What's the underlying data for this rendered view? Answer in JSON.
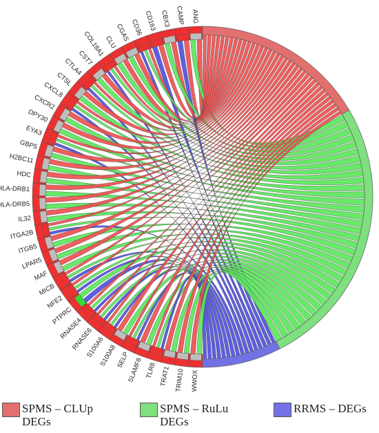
{
  "groups": [
    {
      "name": "SPMS – CLUp DEGs",
      "color": "#e36f6f",
      "ribbon_color": "#f05050",
      "arc_fraction": 0.33
    },
    {
      "name": "SPMS – RuLu DEGs",
      "color": "#7ee07e",
      "ribbon_color": "#5ce65c",
      "arc_fraction": 0.52
    },
    {
      "name": "RRMS – DEGs",
      "color": "#7272e6",
      "ribbon_color": "#5050e0",
      "arc_fraction": 0.15
    }
  ],
  "genes": [
    {
      "name": "ANG",
      "membership": [
        1,
        1,
        0
      ]
    },
    {
      "name": "CAMP",
      "membership": [
        1,
        0,
        1
      ]
    },
    {
      "name": "CBX3",
      "membership": [
        1,
        1,
        0
      ]
    },
    {
      "name": "CD163",
      "membership": [
        1,
        0,
        1
      ]
    },
    {
      "name": "CD36",
      "membership": [
        1,
        1,
        1
      ]
    },
    {
      "name": "CGAS",
      "membership": [
        1,
        1,
        0
      ]
    },
    {
      "name": "CLU",
      "membership": [
        1,
        1,
        0
      ]
    },
    {
      "name": "COL18A1",
      "membership": [
        1,
        1,
        1
      ]
    },
    {
      "name": "CST7",
      "membership": [
        1,
        1,
        0
      ]
    },
    {
      "name": "CTLA4",
      "membership": [
        1,
        1,
        1
      ]
    },
    {
      "name": "CTSL",
      "membership": [
        1,
        1,
        0
      ]
    },
    {
      "name": "CXCL8",
      "membership": [
        1,
        1,
        1
      ]
    },
    {
      "name": "CXCR2",
      "membership": [
        1,
        1,
        0
      ]
    },
    {
      "name": "DPY30",
      "membership": [
        1,
        1,
        0
      ]
    },
    {
      "name": "EYA3",
      "membership": [
        1,
        1,
        1
      ]
    },
    {
      "name": "GBP5",
      "membership": [
        1,
        1,
        0
      ]
    },
    {
      "name": "H2BC11",
      "membership": [
        1,
        1,
        0
      ]
    },
    {
      "name": "HDC",
      "membership": [
        1,
        1,
        0
      ]
    },
    {
      "name": "HLA-DRB1",
      "membership": [
        1,
        1,
        0
      ]
    },
    {
      "name": "HLA-DRB5",
      "membership": [
        1,
        1,
        0
      ]
    },
    {
      "name": "IL32",
      "membership": [
        1,
        1,
        0
      ]
    },
    {
      "name": "ITGA2B",
      "membership": [
        1,
        1,
        1
      ]
    },
    {
      "name": "ITGB5",
      "membership": [
        1,
        1,
        0
      ]
    },
    {
      "name": "LPAR5",
      "membership": [
        1,
        1,
        0
      ]
    },
    {
      "name": "MAF",
      "membership": [
        1,
        1,
        0
      ]
    },
    {
      "name": "MICB",
      "membership": [
        1,
        1,
        1
      ]
    },
    {
      "name": "NFE2",
      "membership": [
        1,
        1,
        1
      ]
    },
    {
      "name": "PTPRC",
      "membership": [
        0,
        1,
        1
      ]
    },
    {
      "name": "RNASE4",
      "membership": [
        1,
        1,
        1
      ]
    },
    {
      "name": "RNASE6",
      "membership": [
        1,
        1,
        1
      ]
    },
    {
      "name": "S100A6",
      "membership": [
        1,
        1,
        1
      ]
    },
    {
      "name": "S100A8",
      "membership": [
        1,
        1,
        0
      ]
    },
    {
      "name": "SELP",
      "membership": [
        1,
        1,
        1
      ]
    },
    {
      "name": "SLAMF8",
      "membership": [
        1,
        1,
        0
      ]
    },
    {
      "name": "TLR8",
      "membership": [
        1,
        1,
        1
      ]
    },
    {
      "name": "TRAT1",
      "membership": [
        1,
        1,
        0
      ]
    },
    {
      "name": "TRIM10",
      "membership": [
        1,
        1,
        0
      ]
    },
    {
      "name": "WWOX",
      "membership": [
        1,
        1,
        0
      ]
    }
  ],
  "legend": [
    {
      "label": "SPMS – CLUp\nDEGs",
      "color": "#e36f6f"
    },
    {
      "label": "SPMS – RuLu\nDEGs",
      "color": "#7ee07e"
    },
    {
      "label": "RRMS – DEGs",
      "color": "#7272e6"
    }
  ]
}
